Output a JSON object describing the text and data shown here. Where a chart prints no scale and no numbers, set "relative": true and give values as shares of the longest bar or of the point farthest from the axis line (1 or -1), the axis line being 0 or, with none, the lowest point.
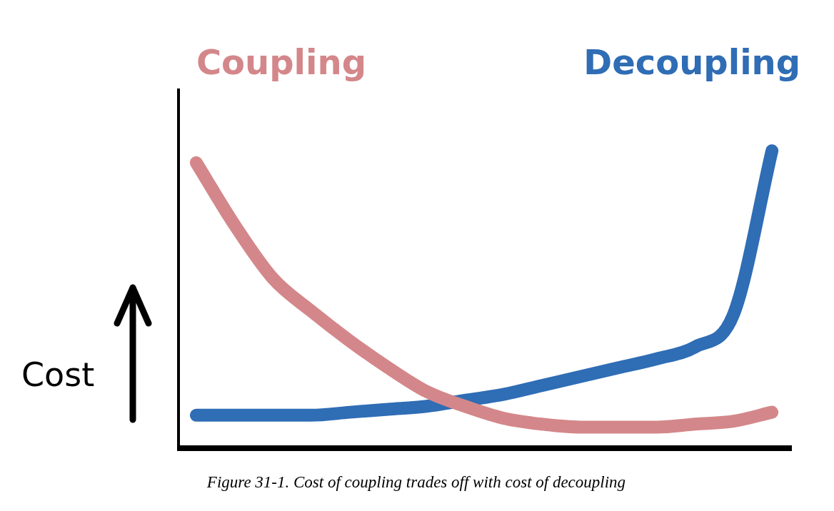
{
  "chart_data": {
    "type": "line",
    "relative": true,
    "ylabel": "Cost",
    "marker": "none",
    "legend": false,
    "grid": false,
    "categories": [
      null,
      null,
      null,
      null,
      null,
      null,
      null,
      null,
      null,
      null,
      null,
      null,
      null,
      null,
      null,
      null
    ],
    "series": [
      {
        "name": "Coupling",
        "color": "#d4878a",
        "values": [
          0.96,
          0.75,
          0.57,
          0.46,
          0.36,
          0.27,
          0.19,
          0.14,
          0.1,
          0.08,
          0.07,
          0.07,
          0.07,
          0.08,
          0.09,
          0.12
        ]
      },
      {
        "name": "Decoupling",
        "color": "#2f6db5",
        "values": [
          0.11,
          0.11,
          0.11,
          0.11,
          0.12,
          0.13,
          0.14,
          0.16,
          0.18,
          0.21,
          0.24,
          0.27,
          0.3,
          0.34,
          0.45,
          1.0
        ]
      }
    ],
    "annotations": [
      "Figure 31-1. Cost of coupling trades off with cost of decoupling"
    ]
  }
}
